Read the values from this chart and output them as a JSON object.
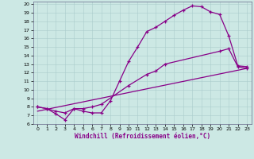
{
  "xlabel": "Windchill (Refroidissement éolien,°C)",
  "bg_color": "#cce8e4",
  "line_color": "#880088",
  "xlim": [
    -0.5,
    23.5
  ],
  "ylim": [
    6,
    20.3
  ],
  "xticks": [
    0,
    1,
    2,
    3,
    4,
    5,
    6,
    7,
    8,
    9,
    10,
    11,
    12,
    13,
    14,
    15,
    16,
    17,
    18,
    19,
    20,
    21,
    22,
    23
  ],
  "yticks": [
    6,
    7,
    8,
    9,
    10,
    11,
    12,
    13,
    14,
    15,
    16,
    17,
    18,
    19,
    20
  ],
  "line1_x": [
    0,
    1,
    2,
    3,
    4,
    5,
    6,
    7,
    8,
    9,
    10,
    11,
    12,
    13,
    14,
    15,
    16,
    17,
    18,
    19,
    20,
    21,
    22,
    23
  ],
  "line1_y": [
    8.0,
    7.8,
    7.2,
    6.5,
    7.8,
    7.5,
    7.3,
    7.3,
    8.7,
    11.0,
    13.3,
    15.0,
    16.8,
    17.3,
    18.0,
    18.7,
    19.3,
    19.8,
    19.7,
    19.1,
    18.8,
    16.3,
    12.8,
    12.7
  ],
  "line2_x": [
    0,
    1,
    2,
    3,
    4,
    5,
    6,
    7,
    10,
    12,
    13,
    14,
    20,
    21,
    22,
    23
  ],
  "line2_y": [
    8.0,
    7.8,
    7.5,
    7.3,
    7.8,
    7.8,
    8.0,
    8.3,
    10.5,
    11.8,
    12.2,
    13.0,
    14.5,
    14.8,
    12.7,
    12.5
  ],
  "line3_x": [
    0,
    23
  ],
  "line3_y": [
    7.5,
    12.5
  ]
}
